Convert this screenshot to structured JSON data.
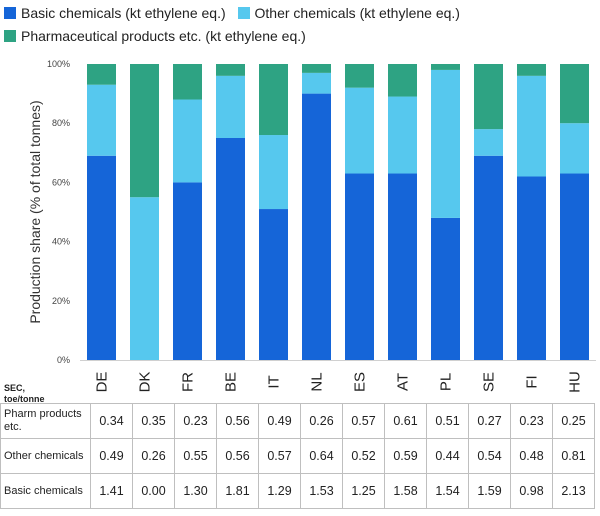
{
  "chart_data": {
    "type": "bar",
    "stacked": true,
    "categories": [
      "DE",
      "DK",
      "FR",
      "BE",
      "IT",
      "NL",
      "ES",
      "AT",
      "PL",
      "SE",
      "FI",
      "HU"
    ],
    "series": [
      {
        "name": "Basic chemicals (kt ethylene eq.)",
        "color": "#1565d8",
        "values": [
          69,
          0,
          60,
          75,
          51,
          90,
          63,
          63,
          48,
          69,
          62,
          63
        ]
      },
      {
        "name": "Other chemicals (kt ethylene eq.)",
        "color": "#56c8ee",
        "values": [
          24,
          55,
          28,
          21,
          25,
          7,
          29,
          26,
          50,
          9,
          34,
          17
        ]
      },
      {
        "name": "Pharmaceutical products etc. (kt ethylene eq.)",
        "color": "#2ea383",
        "values": [
          7,
          45,
          12,
          4,
          24,
          3,
          8,
          11,
          2,
          22,
          4,
          20
        ]
      }
    ],
    "ylabel": "Production share (% of total tonnes)",
    "ylim": [
      0,
      100
    ],
    "yticks": [
      "0%",
      "20%",
      "40%",
      "60%",
      "80%",
      "100%"
    ],
    "legend_position": "top",
    "grid": false
  },
  "table": {
    "header": "SEC, toe/tonne",
    "rows": [
      {
        "label": "Pharm products etc.",
        "values": [
          "0.34",
          "0.35",
          "0.23",
          "0.56",
          "0.49",
          "0.26",
          "0.57",
          "0.61",
          "0.51",
          "0.27",
          "0.23",
          "0.25"
        ]
      },
      {
        "label": "Other chemicals",
        "values": [
          "0.49",
          "0.26",
          "0.55",
          "0.56",
          "0.57",
          "0.64",
          "0.52",
          "0.59",
          "0.44",
          "0.54",
          "0.48",
          "0.81"
        ]
      },
      {
        "label": "Basic chemicals",
        "values": [
          "1.41",
          "0.00",
          "1.30",
          "1.81",
          "1.29",
          "1.53",
          "1.25",
          "1.58",
          "1.54",
          "1.59",
          "0.98",
          "2.13"
        ]
      }
    ]
  }
}
